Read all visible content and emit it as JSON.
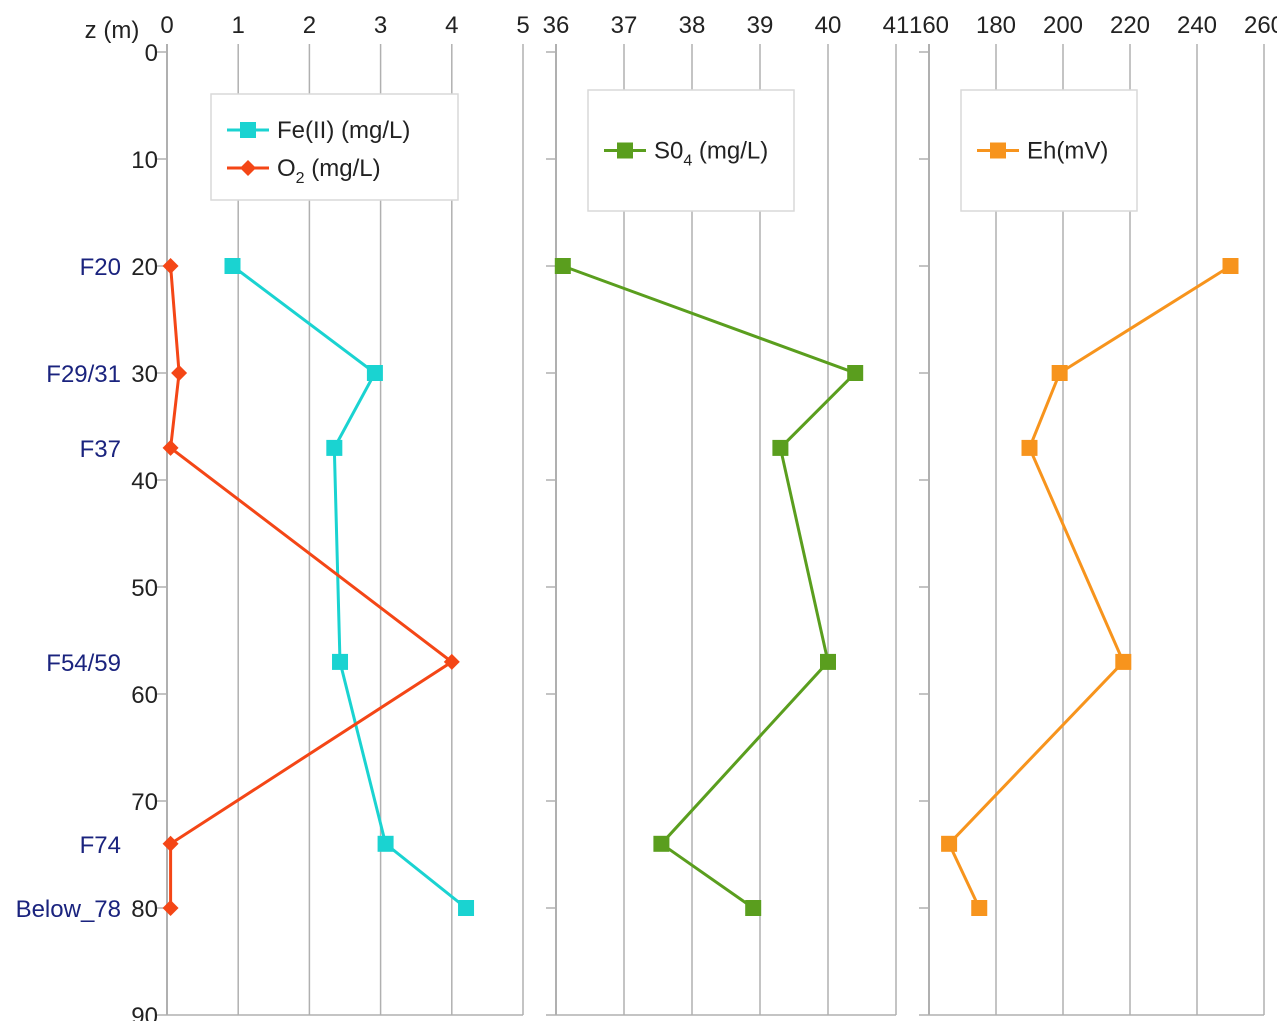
{
  "chart_data": [
    {
      "type": "line",
      "name": "panel-fe-o2",
      "y_axis": {
        "label": "z (m)",
        "ticks": [
          0,
          10,
          20,
          30,
          40,
          50,
          60,
          70,
          80,
          90
        ],
        "range": [
          0,
          90
        ],
        "inverted": true
      },
      "x_axis": {
        "ticks": [
          0,
          1,
          2,
          3,
          4,
          5
        ],
        "range": [
          0,
          5
        ],
        "position": "top"
      },
      "well_labels": [
        {
          "text": "F20",
          "z": 20
        },
        {
          "text": "F29/31",
          "z": 30
        },
        {
          "text": "F37",
          "z": 37
        },
        {
          "text": "F54/59",
          "z": 57
        },
        {
          "text": "F74",
          "z": 74
        },
        {
          "text": "Below_78",
          "z": 80
        }
      ],
      "series": [
        {
          "name": "Fe(II) (mg/L)",
          "color": "#1ad3d1",
          "marker": "square",
          "points": [
            {
              "x": 0.92,
              "z": 20
            },
            {
              "x": 2.92,
              "z": 30
            },
            {
              "x": 2.35,
              "z": 37
            },
            {
              "x": 2.43,
              "z": 57
            },
            {
              "x": 3.07,
              "z": 74
            },
            {
              "x": 4.2,
              "z": 80
            }
          ]
        },
        {
          "name": "O2 (mg/L)",
          "color": "#f44616",
          "marker": "diamond",
          "points": [
            {
              "x": 0.05,
              "z": 20
            },
            {
              "x": 0.17,
              "z": 30
            },
            {
              "x": 0.05,
              "z": 37
            },
            {
              "x": 4.0,
              "z": 57
            },
            {
              "x": 0.05,
              "z": 74
            },
            {
              "x": 0.05,
              "z": 80
            }
          ]
        }
      ],
      "legend": [
        {
          "label": "Fe(II) (mg/L)",
          "color": "#1ad3d1",
          "marker": "square"
        },
        {
          "label_main": "O",
          "label_sub": "2",
          "label_rest": " (mg/L)",
          "color": "#f44616",
          "marker": "diamond"
        }
      ],
      "grid": true,
      "legend_placement": "top-center"
    },
    {
      "type": "line",
      "name": "panel-so4",
      "x_axis": {
        "ticks": [
          36,
          37,
          38,
          39,
          40,
          41
        ],
        "range": [
          36,
          41
        ],
        "position": "top"
      },
      "series": [
        {
          "name": "S04 (mg/L)",
          "color": "#5a9e1e",
          "marker": "square",
          "points": [
            {
              "x": 36.1,
              "z": 20
            },
            {
              "x": 40.4,
              "z": 30
            },
            {
              "x": 39.3,
              "z": 37
            },
            {
              "x": 40.0,
              "z": 57
            },
            {
              "x": 37.55,
              "z": 74
            },
            {
              "x": 38.9,
              "z": 80
            }
          ]
        }
      ],
      "legend": [
        {
          "label_main": "S0",
          "label_sub": "4",
          "label_rest": " (mg/L)",
          "color": "#5a9e1e",
          "marker": "square"
        }
      ],
      "grid": true,
      "legend_placement": "top-center"
    },
    {
      "type": "line",
      "name": "panel-eh",
      "x_axis": {
        "ticks": [
          160,
          180,
          200,
          220,
          240,
          260
        ],
        "range": [
          160,
          260
        ],
        "position": "top"
      },
      "series": [
        {
          "name": "Eh(mV)",
          "color": "#f7941d",
          "marker": "square",
          "points": [
            {
              "x": 250,
              "z": 20
            },
            {
              "x": 199,
              "z": 30
            },
            {
              "x": 190,
              "z": 37
            },
            {
              "x": 218,
              "z": 57
            },
            {
              "x": 166,
              "z": 74
            },
            {
              "x": 175,
              "z": 80
            }
          ]
        }
      ],
      "legend": [
        {
          "label": "Eh(mV)",
          "color": "#f7941d",
          "marker": "square"
        }
      ],
      "grid": true,
      "legend_placement": "top-center"
    }
  ]
}
